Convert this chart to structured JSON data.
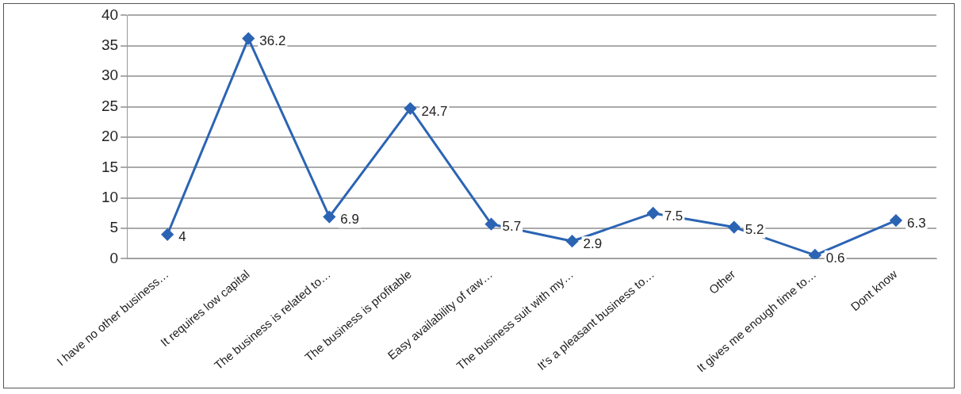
{
  "chart_data": {
    "type": "line",
    "categories": [
      "I have no other business…",
      "It requires low capital",
      "The business is related to…",
      "The business is profitable",
      "Easy availability of raw…",
      "The business suit with my…",
      "It's a pleasant business to…",
      "Other",
      "It gives me enough time to…",
      "Dont know"
    ],
    "series": [
      {
        "color": "#2c64b4",
        "values": [
          4,
          36.2,
          6.9,
          24.7,
          5.7,
          2.9,
          7.5,
          5.2,
          0.6,
          6.3
        ]
      }
    ],
    "ylim": [
      0,
      40
    ],
    "yticks": [
      0,
      5,
      10,
      15,
      20,
      25,
      30,
      35,
      40
    ],
    "grid": "y",
    "legend": false,
    "marker": "diamond",
    "line_style": "solid",
    "data_labels": true
  }
}
